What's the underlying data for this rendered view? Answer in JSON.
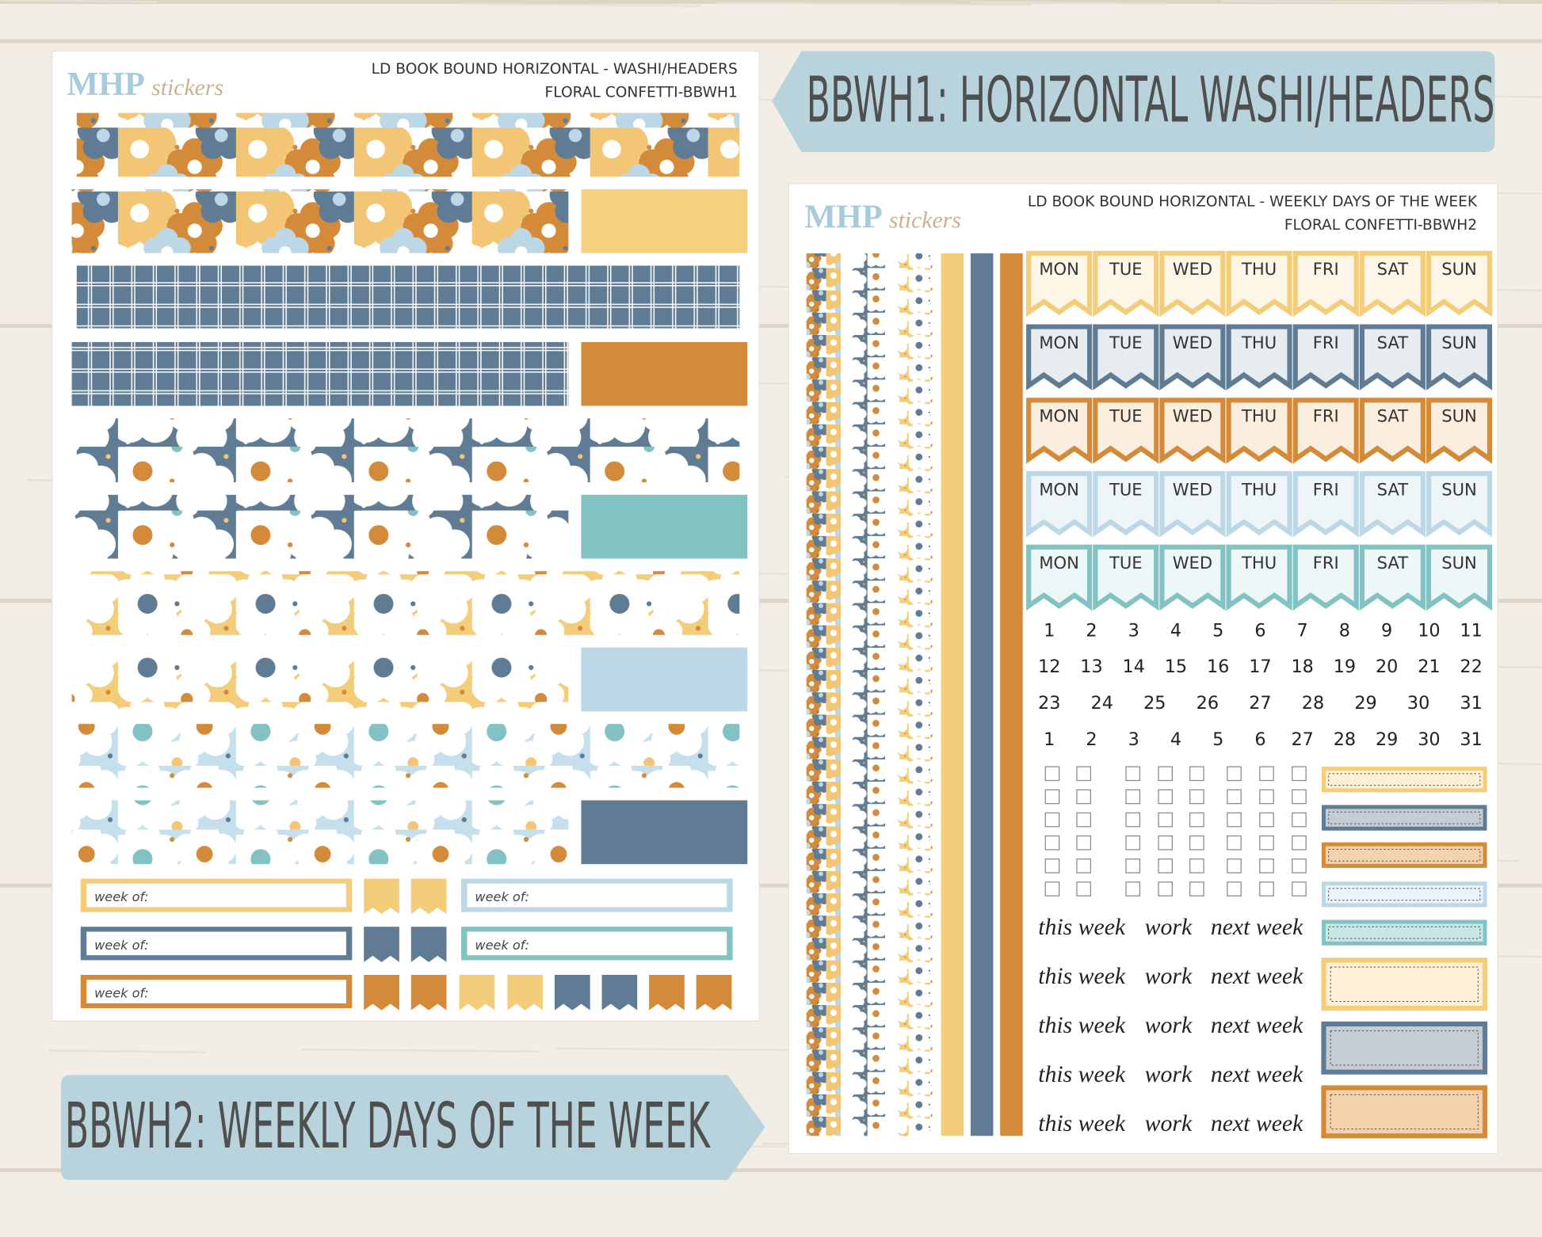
{
  "banners": [
    "BBWH1: HORIZONTAL WASHI/HEADERS",
    "BBWH2: WEEKLY DAYS OF THE WEEK"
  ],
  "sheet1": {
    "logo": {
      "brand": "MHP",
      "script": "stickers"
    },
    "title": "LD BOOK BOUND HORIZONTAL - WASHI/HEADERS",
    "subtitle": "FLORAL CONFETTI-BBWH1",
    "week_labels": [
      "week of:",
      "week of:",
      "week of:",
      "week of:",
      "week of:"
    ]
  },
  "sheet2": {
    "logo": {
      "brand": "MHP",
      "script": "stickers"
    },
    "title": "LD BOOK BOUND HORIZONTAL - WEEKLY DAYS OF THE WEEK",
    "subtitle": "FLORAL CONFETTI-BBWH2",
    "day_rows": [
      [
        "MON",
        "TUE",
        "WED",
        "THU",
        "FRI",
        "SAT",
        "SUN"
      ],
      [
        "MON",
        "TUE",
        "WED",
        "THU",
        "FRI",
        "SAT",
        "SUN"
      ],
      [
        "MON",
        "TUE",
        "WED",
        "THU",
        "FRI",
        "SAT",
        "SUN"
      ],
      [
        "MON",
        "TUE",
        "WED",
        "THU",
        "FRI",
        "SAT",
        "SUN"
      ],
      [
        "MON",
        "TUE",
        "WED",
        "THU",
        "FRI",
        "SAT",
        "SUN"
      ]
    ],
    "date_rows": [
      [
        1,
        2,
        3,
        4,
        5,
        6,
        7,
        8,
        9,
        10,
        11
      ],
      [
        12,
        13,
        14,
        15,
        16,
        17,
        18,
        19,
        20,
        21,
        22
      ],
      [
        23,
        24,
        25,
        26,
        27,
        28,
        29,
        30,
        31
      ],
      [
        1,
        2,
        3,
        4,
        5,
        6,
        27,
        28,
        29,
        30,
        31
      ]
    ],
    "word_rows": [
      [
        "this week",
        "work",
        "next week"
      ],
      [
        "this week",
        "work",
        "next week"
      ],
      [
        "this week",
        "work",
        "next week"
      ],
      [
        "this week",
        "work",
        "next week"
      ],
      [
        "this week",
        "work",
        "next week"
      ]
    ]
  }
}
